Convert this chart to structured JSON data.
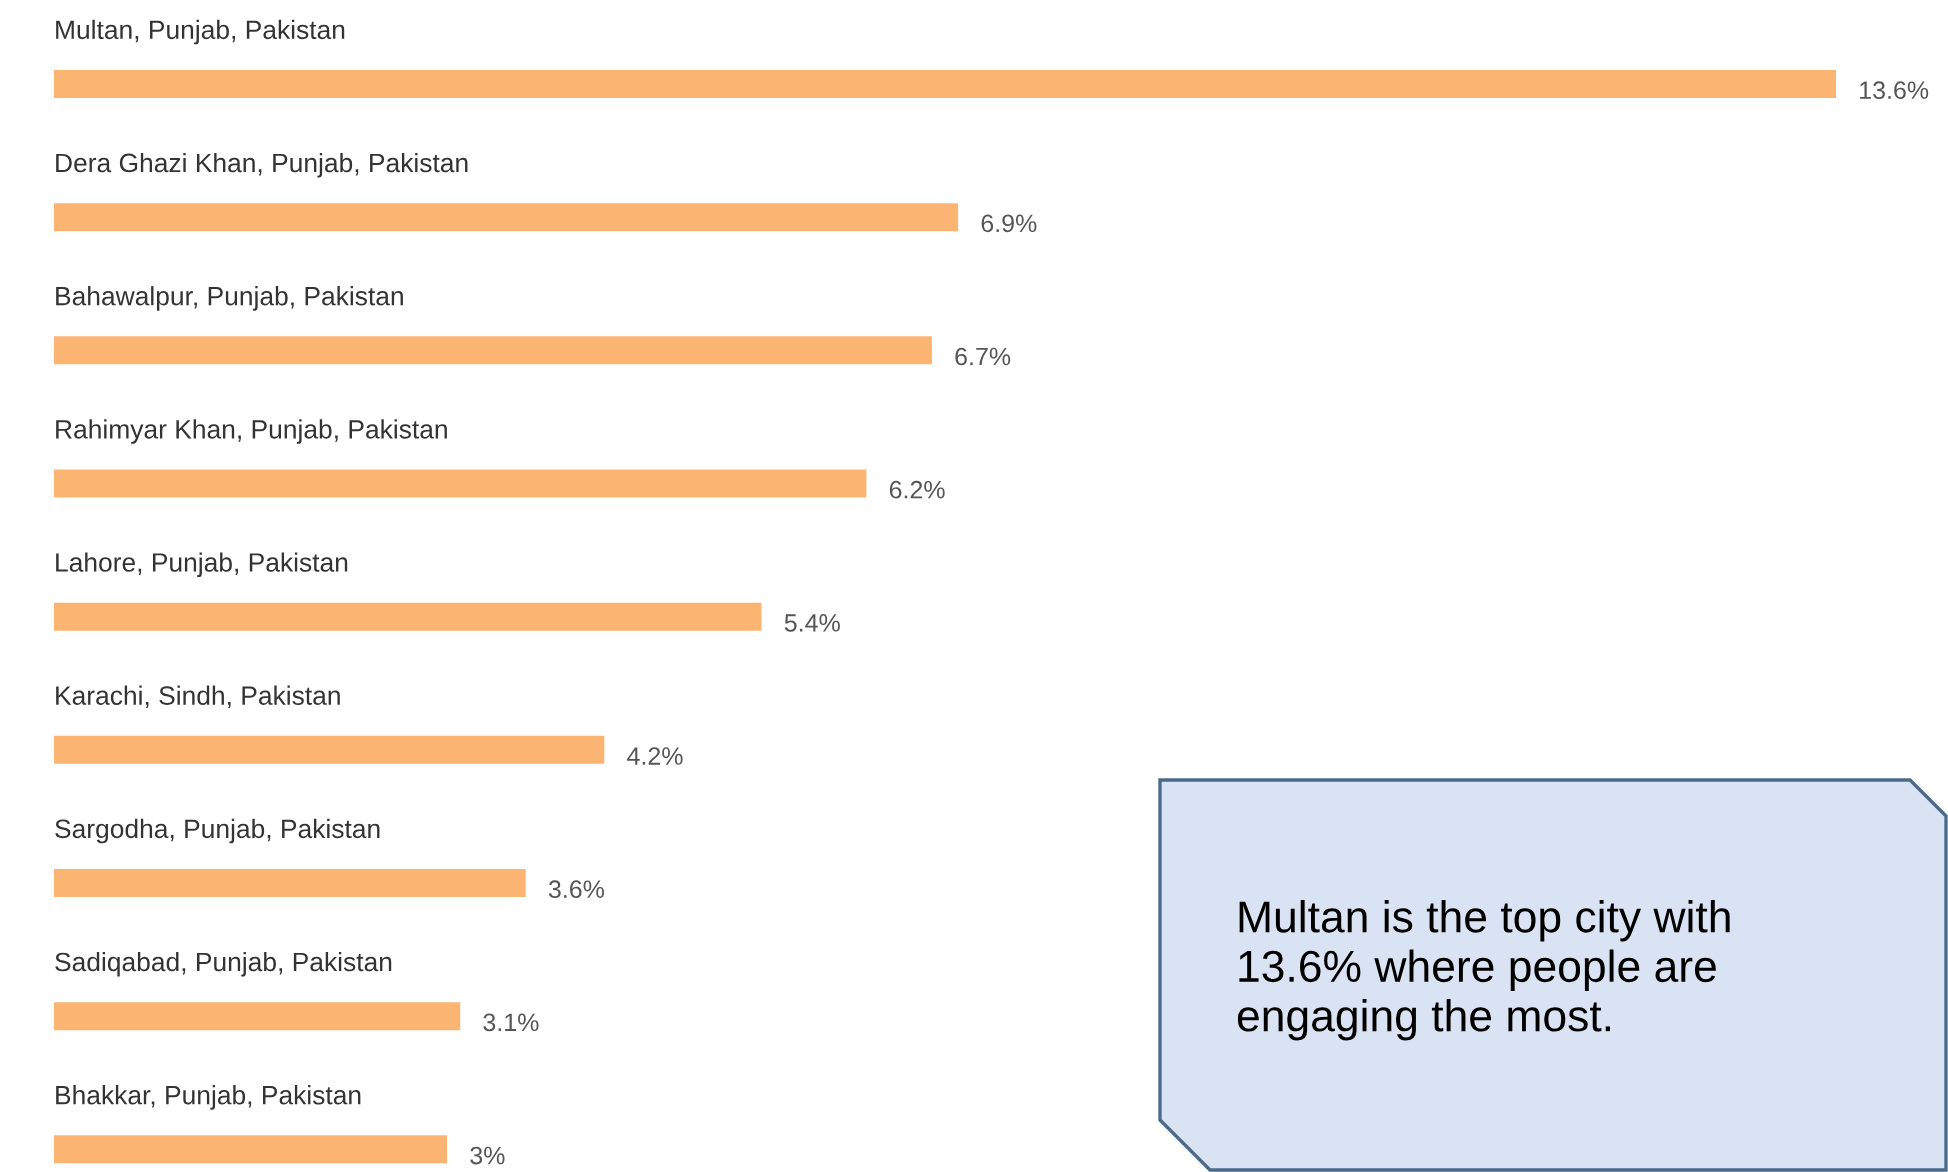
{
  "chart_data": {
    "type": "bar",
    "orientation": "horizontal",
    "categories": [
      "Multan, Punjab, Pakistan",
      "Dera Ghazi Khan, Punjab, Pakistan",
      "Bahawalpur, Punjab, Pakistan",
      "Rahimyar Khan, Punjab, Pakistan",
      "Lahore, Punjab, Pakistan",
      "Karachi, Sindh, Pakistan",
      "Sargodha, Punjab, Pakistan",
      "Sadiqabad, Punjab, Pakistan",
      "Bhakkar, Punjab, Pakistan"
    ],
    "values": [
      13.6,
      6.9,
      6.7,
      6.2,
      5.4,
      4.2,
      3.6,
      3.1,
      3
    ],
    "value_labels": [
      "13.6%",
      "6.9%",
      "6.7%",
      "6.2%",
      "5.4%",
      "4.2%",
      "3.6%",
      "3.1%",
      "3%"
    ],
    "color": "#fbb471",
    "annotations": [
      "Multan is the top city with\n13.6% where people are\nengaging the most."
    ]
  }
}
